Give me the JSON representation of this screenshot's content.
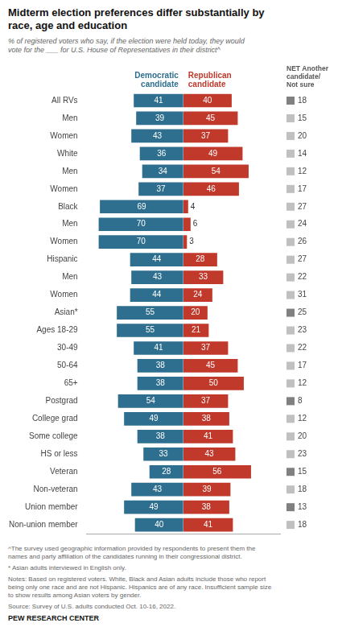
{
  "chart_data": {
    "type": "bar",
    "orientation": "horizontal",
    "title": "Midterm election preferences differ substantially by\nrace, age and education",
    "subtitle": "% of registered voters who say, if the election were held today, they would\nvote for the ___ for U.S. House of Representatives in their district^",
    "categories": [
      "All RVs",
      "Men",
      "Women",
      "White",
      "Men",
      "Women",
      "Black",
      "Men",
      "Women",
      "Hispanic",
      "Men",
      "Women",
      "Asian*",
      "Ages 18-29",
      "30-49",
      "50-64",
      "65+",
      "Postgrad",
      "College grad",
      "Some college",
      "HS or less",
      "Veteran",
      "Non-veteran",
      "Union member",
      "Non-union member"
    ],
    "series": [
      {
        "name": "Democratic\ncandidate",
        "color": "#2e6e8e",
        "values": [
          41,
          39,
          43,
          36,
          34,
          37,
          69,
          70,
          70,
          44,
          43,
          44,
          55,
          55,
          41,
          38,
          38,
          54,
          49,
          38,
          33,
          28,
          43,
          49,
          40
        ]
      },
      {
        "name": "Republican\ncandidate",
        "color": "#c0392b",
        "values": [
          40,
          45,
          37,
          49,
          54,
          46,
          4,
          6,
          3,
          28,
          33,
          24,
          20,
          21,
          37,
          45,
          50,
          37,
          38,
          41,
          43,
          56,
          39,
          38,
          41
        ]
      },
      {
        "name": "NET Another\ncandidate/\nNot sure",
        "marker": "square",
        "colors": [
          "#808080",
          "#c0c0c0",
          "#c0c0c0",
          "#c0c0c0",
          "#c0c0c0",
          "#c0c0c0",
          "#c0c0c0",
          "#c0c0c0",
          "#c0c0c0",
          "#c0c0c0",
          "#c0c0c0",
          "#c0c0c0",
          "#808080",
          "#c0c0c0",
          "#c0c0c0",
          "#c0c0c0",
          "#c0c0c0",
          "#808080",
          "#c0c0c0",
          "#c0c0c0",
          "#c0c0c0",
          "#808080",
          "#c0c0c0",
          "#808080",
          "#c0c0c0"
        ],
        "values": [
          18,
          15,
          20,
          14,
          12,
          17,
          27,
          24,
          26,
          27,
          22,
          31,
          25,
          23,
          22,
          17,
          12,
          8,
          12,
          20,
          23,
          15,
          18,
          13,
          18
        ]
      }
    ],
    "xlim": [
      0,
      80
    ],
    "grid": false,
    "data_labels": true,
    "tick_labels": "y",
    "annotations": [
      "^The survey used geographic information provided by respondents to present them the\nnames and party affiliation of the candidates running in their congressional district.",
      "* Asian adults interviewed in English only.",
      "Notes: Based on registered voters. White, Black and Asian adults include those who report\nbeing only one race and are not Hispanic. Hispanics are of any race. Insufficient sample size\nto show results among Asian voters by gender.",
      "Source: Survey of U.S. adults conducted Oct. 10-16, 2022.",
      "PEW RESEARCH CENTER"
    ]
  }
}
